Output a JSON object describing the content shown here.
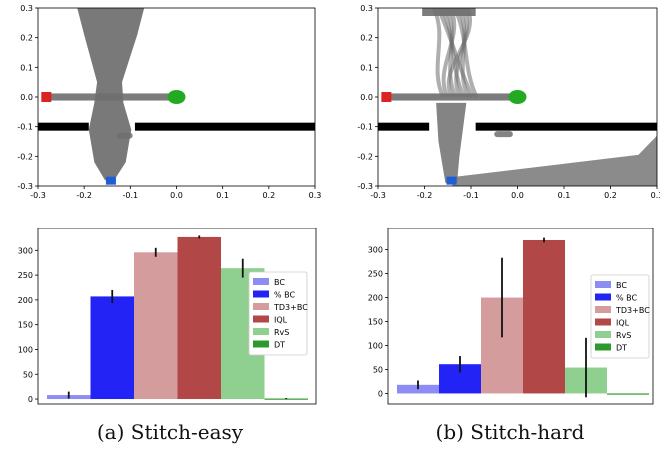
{
  "chart_data": [
    {
      "type": "scatter",
      "id": "maze-easy",
      "title": "",
      "xlabel": "",
      "ylabel": "",
      "xlim": [
        -0.3,
        0.3
      ],
      "ylim": [
        -0.3,
        0.3
      ],
      "xticks": [
        "-0.3",
        "-0.2",
        "-0.1",
        "0.0",
        "0.1",
        "0.2",
        "0.3"
      ],
      "yticks": [
        "0.3",
        "0.2",
        "0.1",
        "0.0",
        "-0.1",
        "-0.2",
        "-0.3"
      ],
      "wall": {
        "y": -0.1,
        "gap": [
          -0.19,
          -0.09
        ]
      },
      "start": {
        "x": -0.142,
        "y": -0.282,
        "color": "#1f5fd6"
      },
      "goal": {
        "x": 0.0,
        "y": 0.0,
        "color": "#22aa22"
      },
      "marker": {
        "x": -0.282,
        "y": 0.0,
        "color": "#dd2222"
      },
      "trajectory_color": "#6e6e6e"
    },
    {
      "type": "scatter",
      "id": "maze-hard",
      "title": "",
      "xlabel": "",
      "ylabel": "",
      "xlim": [
        -0.3,
        0.3
      ],
      "ylim": [
        -0.3,
        0.3
      ],
      "xticks": [
        "-0.3",
        "-0.2",
        "-0.1",
        "0.0",
        "0.1",
        "0.2",
        "0.3"
      ],
      "yticks": [
        "0.3",
        "0.2",
        "0.1",
        "0.0",
        "-0.1",
        "-0.2",
        "-0.3"
      ],
      "wall": {
        "y": -0.1,
        "gap": [
          -0.19,
          -0.09
        ]
      },
      "start": {
        "x": -0.142,
        "y": -0.282,
        "color": "#1f5fd6"
      },
      "goal": {
        "x": 0.0,
        "y": 0.0,
        "color": "#22aa22"
      },
      "marker": {
        "x": -0.282,
        "y": 0.0,
        "color": "#dd2222"
      },
      "trajectory_color": "#6e6e6e"
    },
    {
      "type": "bar",
      "id": "bars-easy",
      "title": "",
      "xlabel": "",
      "ylabel": "",
      "ylim": [
        -10,
        345
      ],
      "yticks": [
        0,
        50,
        100,
        150,
        200,
        250,
        300
      ],
      "legend_position": "right",
      "series": [
        {
          "name": "BC",
          "value": 8,
          "err": 7,
          "color": "#8c8cf2"
        },
        {
          "name": "% BC",
          "value": 207,
          "err": 13,
          "color": "#2323f5"
        },
        {
          "name": "TD3+BC",
          "value": 296,
          "err": 9,
          "color": "#d49c9c"
        },
        {
          "name": "IQL",
          "value": 327,
          "err": 3,
          "color": "#b24747"
        },
        {
          "name": "RvS",
          "value": 264,
          "err": 19,
          "color": "#8fcf8f"
        },
        {
          "name": "DT",
          "value": 1,
          "err": 1,
          "color": "#2c9a2c"
        }
      ]
    },
    {
      "type": "bar",
      "id": "bars-hard",
      "title": "",
      "xlabel": "",
      "ylabel": "",
      "ylim": [
        -22,
        345
      ],
      "yticks": [
        0,
        50,
        100,
        150,
        200,
        250,
        300
      ],
      "legend_position": "right",
      "series": [
        {
          "name": "BC",
          "value": 18,
          "err": 9,
          "color": "#8c8cf2"
        },
        {
          "name": "% BC",
          "value": 61,
          "err": 17,
          "color": "#2323f5"
        },
        {
          "name": "TD3+BC",
          "value": 200,
          "err": 83,
          "color": "#d49c9c"
        },
        {
          "name": "IQL",
          "value": 320,
          "err": 5,
          "color": "#b24747"
        },
        {
          "name": "RvS",
          "value": 54,
          "err": 62,
          "color": "#8fcf8f"
        },
        {
          "name": "DT",
          "value": 0,
          "err": 0,
          "color": "#2c9a2c"
        }
      ]
    }
  ],
  "captions": {
    "a": "(a) Stitch-easy",
    "b": "(b) Stitch-hard"
  }
}
